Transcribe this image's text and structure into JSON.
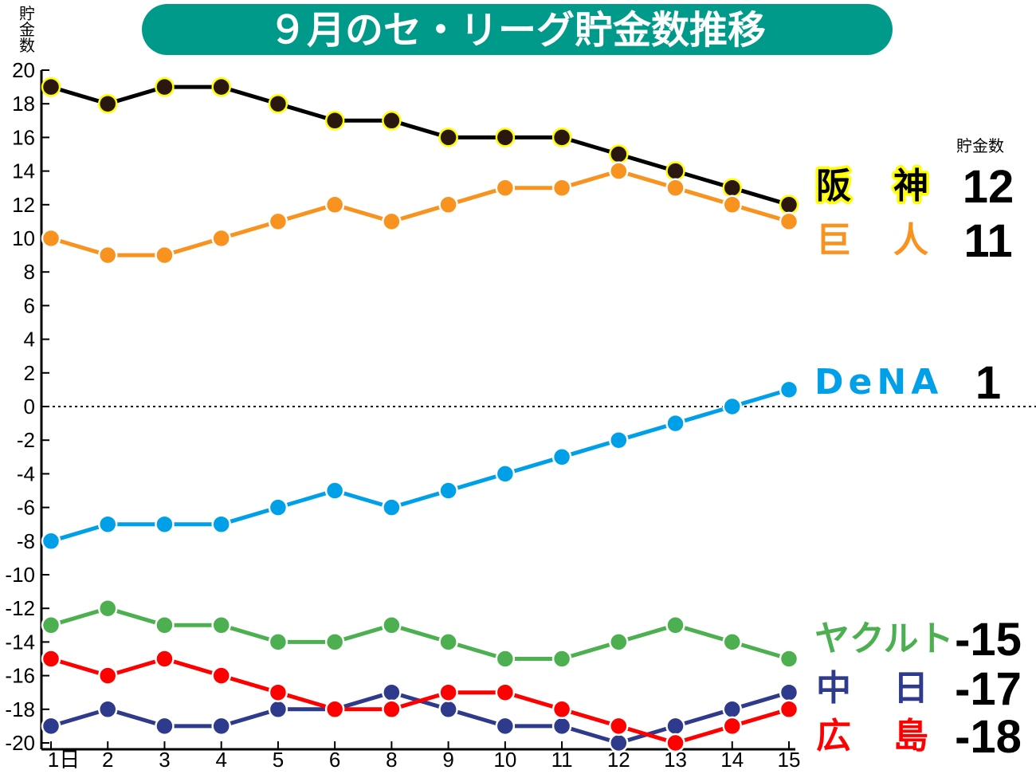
{
  "chart_data": {
    "type": "line",
    "title": "９月のセ・リーグ貯金数推移",
    "ylabel": "貯金数",
    "legend_header": "貯金数",
    "ylim": [
      -20,
      20
    ],
    "yticks": [
      20,
      18,
      16,
      14,
      12,
      10,
      8,
      6,
      4,
      2,
      0,
      -2,
      -4,
      -6,
      -8,
      -10,
      -12,
      -14,
      -16,
      -18,
      -20
    ],
    "categories": [
      "1日",
      "2",
      "3",
      "4",
      "5",
      "6",
      "8",
      "9",
      "10",
      "11",
      "12",
      "13",
      "14",
      "15"
    ],
    "zero_line": "dotted",
    "series": [
      {
        "name": "阪　神",
        "final_label": "12",
        "color": "#000000",
        "marker_fill": "#2a1810",
        "marker_stroke": "#ffff00",
        "label_bg": "#ffff00",
        "values": [
          19,
          18,
          19,
          19,
          18,
          17,
          17,
          16,
          16,
          16,
          15,
          14,
          13,
          12
        ]
      },
      {
        "name": "巨　人",
        "final_label": "11",
        "color": "#f7931e",
        "marker_fill": "#f7931e",
        "marker_stroke": "#ffffff",
        "values": [
          10,
          9,
          9,
          10,
          11,
          12,
          11,
          12,
          13,
          13,
          14,
          13,
          12,
          11
        ]
      },
      {
        "name": "DeNA",
        "final_label": "1",
        "color": "#00a0e9",
        "marker_fill": "#00a0e9",
        "marker_stroke": "#ffffff",
        "values": [
          -8,
          -7,
          -7,
          -7,
          -6,
          -5,
          -6,
          -5,
          -4,
          -3,
          -2,
          -1,
          0,
          1
        ]
      },
      {
        "name": "ヤクルト",
        "final_label": "-15",
        "color": "#4caf50",
        "marker_fill": "#4caf50",
        "marker_stroke": "#ffffff",
        "values": [
          -13,
          -12,
          -13,
          -13,
          -14,
          -14,
          -13,
          -14,
          -15,
          -15,
          -14,
          -13,
          -14,
          -15
        ]
      },
      {
        "name": "中　日",
        "final_label": "-17",
        "color": "#2e3a8c",
        "marker_fill": "#2e3a8c",
        "marker_stroke": "#ffffff",
        "values": [
          -19,
          -18,
          -19,
          -19,
          -18,
          -18,
          -17,
          -18,
          -19,
          -19,
          -20,
          -19,
          -18,
          -17
        ]
      },
      {
        "name": "広　島",
        "final_label": "-18",
        "color": "#ff0000",
        "marker_fill": "#ff0000",
        "marker_stroke": "#ffffff",
        "values": [
          -15,
          -16,
          -15,
          -16,
          -17,
          -18,
          -18,
          -17,
          -17,
          -18,
          -19,
          -20,
          -19,
          -18
        ]
      }
    ]
  },
  "colors": {
    "title_bg": "#009a8a",
    "title_text": "#ffffff"
  }
}
